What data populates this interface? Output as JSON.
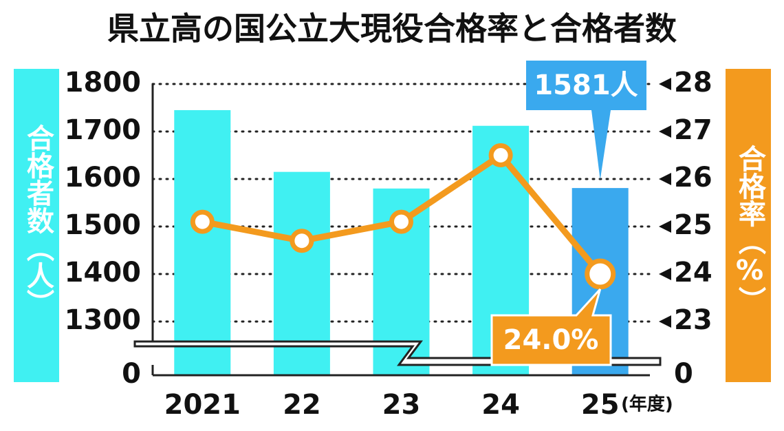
{
  "chart_data": {
    "type": "bar_line",
    "title": "県立高の国公立大現役合格率と合格者数",
    "categories": [
      "2021",
      "22",
      "23",
      "24",
      "25"
    ],
    "x_unit": "(年度)",
    "y_label": "合格者数（人）",
    "y2_label": "合格率（%）",
    "series": [
      {
        "name": "合格者数",
        "type": "bar",
        "color": "#40f0f2",
        "highlight_color": "#3aa9ee",
        "values": [
          1745,
          1615,
          1580,
          1712,
          1581
        ],
        "value_labels": [
          null,
          null,
          null,
          null,
          "1581人"
        ]
      },
      {
        "name": "合格率",
        "type": "line",
        "axis": "y2",
        "color": "#f39a1e",
        "values": [
          25.1,
          24.7,
          25.1,
          26.5,
          24.0
        ],
        "value_labels": [
          null,
          null,
          null,
          null,
          "24.0%"
        ]
      }
    ],
    "ylim": [
      0,
      1800
    ],
    "yticks": [
      0,
      1300,
      1400,
      1500,
      1600,
      1700,
      1800
    ],
    "y2lim": [
      0,
      28
    ],
    "y2ticks": [
      0,
      23,
      24,
      25,
      26,
      27,
      28
    ],
    "axis_break": true,
    "grid": true
  }
}
